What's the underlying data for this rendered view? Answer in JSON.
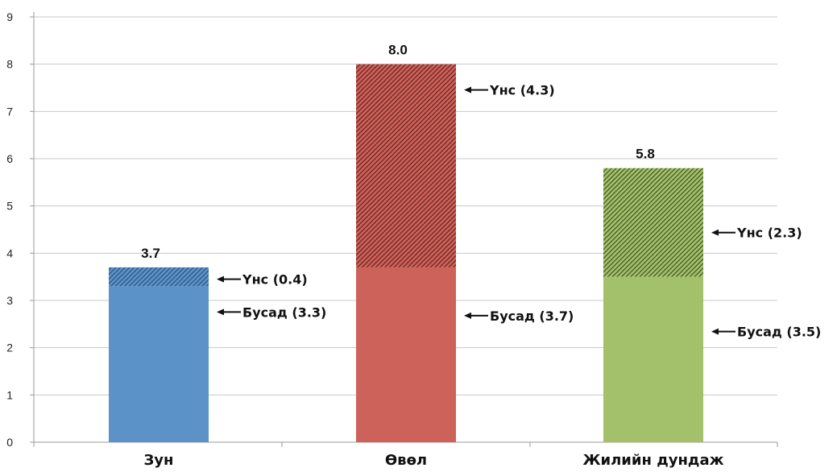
{
  "chart_data": {
    "type": "bar",
    "stacked": true,
    "categories": [
      "Зун",
      "Өвөл",
      "Жилийн дундаж"
    ],
    "series": [
      {
        "values": [
          3.3,
          3.7,
          3.5
        ]
      },
      {
        "values": [
          0.4,
          4.3,
          2.3
        ]
      }
    ],
    "totals": [
      "3.7",
      "8.0",
      "5.8"
    ],
    "annotations": [
      {
        "category": "Зун",
        "segment": 1,
        "text": "Үнс (0.4)"
      },
      {
        "category": "Зун",
        "segment": 0,
        "text": "Бусад (3.3)"
      },
      {
        "category": "Өвөл",
        "segment": 1,
        "text": "Үнс (4.3)"
      },
      {
        "category": "Өвөл",
        "segment": 0,
        "text": "Бусад (3.7)"
      },
      {
        "category": "Жилийн дундаж",
        "segment": 1,
        "text": "Үнс (2.3)"
      },
      {
        "category": "Жилийн дундаж",
        "segment": 0,
        "text": "Бусад (3.5)"
      }
    ],
    "yticks": [
      "0",
      "1",
      "2",
      "3",
      "4",
      "5",
      "6",
      "7",
      "8",
      "9"
    ],
    "ylim": [
      0,
      9
    ],
    "grid": true,
    "colors": {
      "Зун": "#5b93c9",
      "Өвөл": "#cc625a",
      "Жилийн дундаж": "#a3c06a"
    },
    "hatch_colors": {
      "Зун": "#2a4a78",
      "Өвөл": "#5e1b17",
      "Жилийн дундаж": "#364a1a"
    }
  }
}
